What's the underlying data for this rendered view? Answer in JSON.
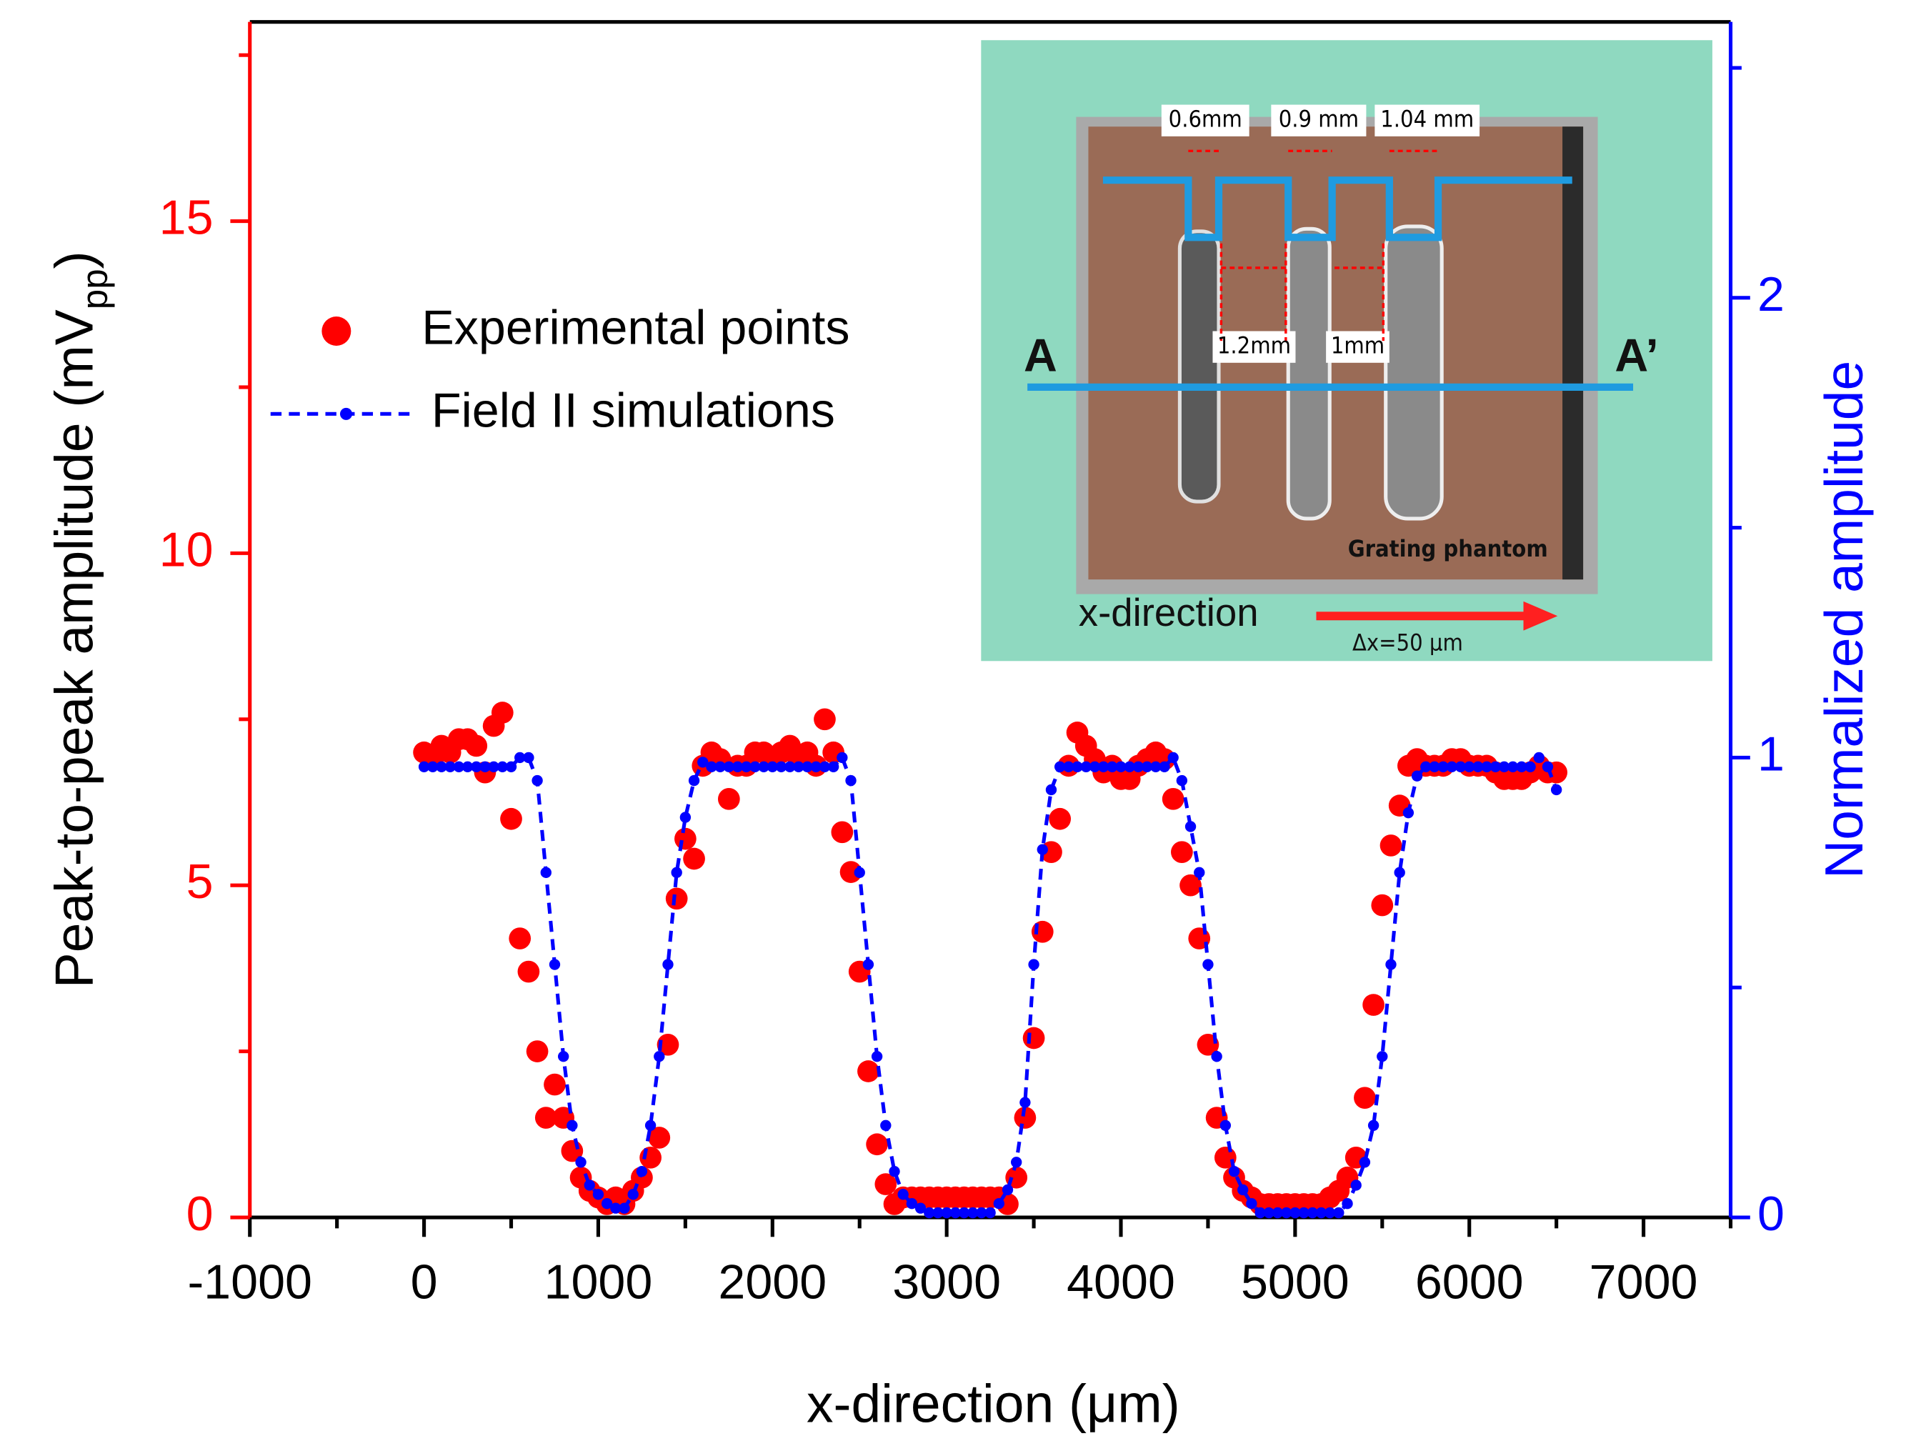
{
  "chart_data": {
    "type": "scatter",
    "xlabel": "x-direction (μm)",
    "ylabel": {
      "text": "Peak-to-peak amplitude (mV",
      "sub": "pp",
      "end": ")"
    },
    "y2label": "Normalized amplitude",
    "xlim": [
      -1000,
      7500
    ],
    "xticks": [
      -1000,
      0,
      1000,
      2000,
      3000,
      4000,
      5000,
      6000,
      7000
    ],
    "xminor_ticks": [
      -500,
      500,
      1500,
      2500,
      3500,
      4500,
      5500,
      6500,
      7500
    ],
    "ylim": [
      0,
      18
    ],
    "yticks": [
      0,
      5,
      10,
      15
    ],
    "yminor_ticks": [
      2.5,
      7.5,
      12.5,
      17.5
    ],
    "y2lim": [
      0,
      2.6
    ],
    "y2ticks": [
      0,
      1,
      2
    ],
    "y2minor_ticks": [
      0.5,
      1.5,
      2.5
    ],
    "ycolor": "#ff0000",
    "y2color": "#0000ff",
    "legend": "upper left",
    "x": [
      0,
      50,
      100,
      150,
      200,
      250,
      300,
      350,
      400,
      450,
      500,
      550,
      600,
      650,
      700,
      750,
      800,
      850,
      900,
      950,
      1000,
      1050,
      1100,
      1150,
      1200,
      1250,
      1300,
      1350,
      1400,
      1450,
      1500,
      1550,
      1600,
      1650,
      1700,
      1750,
      1800,
      1850,
      1900,
      1950,
      2000,
      2050,
      2100,
      2150,
      2200,
      2250,
      2300,
      2350,
      2400,
      2450,
      2500,
      2550,
      2600,
      2650,
      2700,
      2750,
      2800,
      2850,
      2900,
      2950,
      3000,
      3050,
      3100,
      3150,
      3200,
      3250,
      3300,
      3350,
      3400,
      3450,
      3500,
      3550,
      3600,
      3650,
      3700,
      3750,
      3800,
      3850,
      3900,
      3950,
      4000,
      4050,
      4100,
      4150,
      4200,
      4250,
      4300,
      4350,
      4400,
      4450,
      4500,
      4550,
      4600,
      4650,
      4700,
      4750,
      4800,
      4850,
      4900,
      4950,
      5000,
      5050,
      5100,
      5150,
      5200,
      5250,
      5300,
      5350,
      5400,
      5450,
      5500,
      5550,
      5600,
      5650,
      5700,
      5750,
      5800,
      5850,
      5900,
      5950,
      6000,
      6050,
      6100,
      6150,
      6200,
      6250,
      6300,
      6350,
      6400,
      6450,
      6500
    ],
    "series": [
      {
        "name": "Experimental points",
        "type": "scatter",
        "color": "#ff0000",
        "axis": "y",
        "values": [
          7.0,
          6.9,
          7.1,
          7.0,
          7.2,
          7.2,
          7.1,
          6.7,
          7.4,
          7.6,
          6.0,
          4.2,
          3.7,
          2.5,
          1.5,
          2.0,
          1.5,
          1.0,
          0.6,
          0.4,
          0.3,
          0.2,
          0.3,
          0.2,
          0.4,
          0.6,
          0.9,
          1.2,
          2.6,
          4.8,
          5.7,
          5.4,
          6.8,
          7.0,
          6.9,
          6.3,
          6.8,
          6.8,
          7.0,
          7.0,
          6.9,
          7.0,
          7.1,
          6.9,
          7.0,
          6.8,
          7.5,
          7.0,
          5.8,
          5.2,
          3.7,
          2.2,
          1.1,
          0.5,
          0.2,
          0.3,
          0.3,
          0.3,
          0.3,
          0.3,
          0.3,
          0.3,
          0.3,
          0.3,
          0.3,
          0.3,
          0.3,
          0.2,
          0.6,
          1.5,
          2.7,
          4.3,
          5.5,
          6.0,
          6.8,
          7.3,
          7.1,
          6.9,
          6.7,
          6.8,
          6.6,
          6.6,
          6.8,
          6.9,
          7.0,
          6.9,
          6.3,
          5.5,
          5.0,
          4.2,
          2.6,
          1.5,
          0.9,
          0.6,
          0.4,
          0.3,
          0.2,
          0.2,
          0.2,
          0.2,
          0.2,
          0.2,
          0.2,
          0.2,
          0.3,
          0.4,
          0.6,
          0.9,
          1.8,
          3.2,
          4.7,
          5.6,
          6.2,
          6.8,
          6.9,
          6.8,
          6.8,
          6.8,
          6.9,
          6.9,
          6.8,
          6.8,
          6.8,
          6.7,
          6.6,
          6.6,
          6.6,
          6.7,
          6.8,
          6.7,
          6.7
        ]
      },
      {
        "name": "Field II simulations",
        "type": "line",
        "color": "#0000ff",
        "axis": "y2",
        "values": [
          0.98,
          0.98,
          0.98,
          0.98,
          0.98,
          0.98,
          0.98,
          0.98,
          0.98,
          0.98,
          0.98,
          1.0,
          1.0,
          0.95,
          0.75,
          0.55,
          0.35,
          0.2,
          0.12,
          0.07,
          0.05,
          0.03,
          0.02,
          0.02,
          0.05,
          0.1,
          0.2,
          0.35,
          0.55,
          0.75,
          0.87,
          0.95,
          0.99,
          0.98,
          0.98,
          0.98,
          0.98,
          0.98,
          0.98,
          0.98,
          0.98,
          0.98,
          0.98,
          0.98,
          0.98,
          0.98,
          0.98,
          0.98,
          1.0,
          0.95,
          0.75,
          0.55,
          0.35,
          0.2,
          0.1,
          0.05,
          0.03,
          0.02,
          0.01,
          0.01,
          0.01,
          0.01,
          0.01,
          0.01,
          0.01,
          0.01,
          0.03,
          0.06,
          0.12,
          0.25,
          0.55,
          0.8,
          0.93,
          0.98,
          0.98,
          0.98,
          0.98,
          0.98,
          0.98,
          0.98,
          0.98,
          0.98,
          0.98,
          0.98,
          0.98,
          0.98,
          1.0,
          0.95,
          0.85,
          0.75,
          0.55,
          0.35,
          0.2,
          0.1,
          0.06,
          0.03,
          0.01,
          0.01,
          0.01,
          0.01,
          0.01,
          0.01,
          0.01,
          0.01,
          0.01,
          0.01,
          0.03,
          0.07,
          0.12,
          0.2,
          0.35,
          0.55,
          0.75,
          0.88,
          0.96,
          0.98,
          0.98,
          0.98,
          0.98,
          0.98,
          0.98,
          0.98,
          0.98,
          0.98,
          0.98,
          0.98,
          0.98,
          0.98,
          1.0,
          0.98,
          0.93
        ]
      }
    ],
    "inset": {
      "widths": [
        "0.6mm",
        "0.9 mm",
        "1.04 mm"
      ],
      "gaps": [
        "1.2mm",
        "1mm"
      ],
      "left_end": "A",
      "right_end": "A’",
      "caption": "Grating phantom",
      "direction": "x-direction",
      "step": "Δx=50 μm"
    }
  }
}
